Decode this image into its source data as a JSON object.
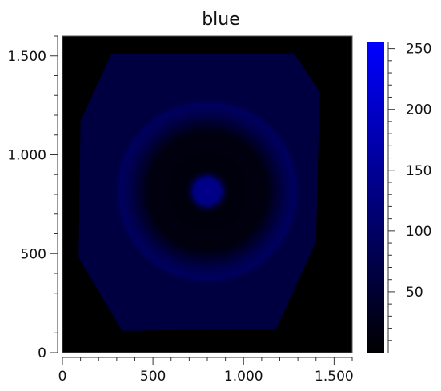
{
  "chart_data": {
    "type": "heatmap",
    "title": "blue",
    "xlabel": "",
    "ylabel": "",
    "xlim": [
      0,
      1600
    ],
    "ylim": [
      0,
      1600
    ],
    "x_tick_labels": [
      {
        "value": 0,
        "label": "0"
      },
      {
        "value": 500,
        "label": "500"
      },
      {
        "value": 1000,
        "label": "1.000"
      },
      {
        "value": 1500,
        "label": "1.500"
      }
    ],
    "y_tick_labels": [
      {
        "value": 0,
        "label": "0"
      },
      {
        "value": 500,
        "label": "500"
      },
      {
        "value": 1000,
        "label": "1.000"
      },
      {
        "value": 1500,
        "label": "1.500"
      }
    ],
    "colorbar": {
      "range": [
        0,
        255
      ],
      "tick_labels": [
        {
          "value": 50,
          "label": "50"
        },
        {
          "value": 100,
          "label": "100"
        },
        {
          "value": 150,
          "label": "150"
        },
        {
          "value": 200,
          "label": "200"
        },
        {
          "value": 250,
          "label": "250"
        }
      ],
      "color_low": "#000000",
      "color_high": "#0000ff"
    },
    "features": {
      "background_level": 0,
      "plate_level": 65,
      "outer_ring_level": 95,
      "inner_dark_disk_level": 10,
      "center_spot_level": 140,
      "center": [
        800,
        815
      ],
      "ring_radius": 520,
      "center_spot_radius": 130,
      "plate_outline": [
        [
          270,
          1510
        ],
        [
          1280,
          1510
        ],
        [
          1420,
          1320
        ],
        [
          1400,
          560
        ],
        [
          1180,
          120
        ],
        [
          330,
          110
        ],
        [
          90,
          480
        ],
        [
          100,
          1170
        ]
      ]
    },
    "grid": false,
    "legend": "colorbar-right"
  }
}
